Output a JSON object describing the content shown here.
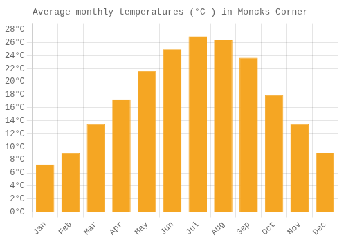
{
  "chart_data": {
    "type": "bar",
    "title": "Average monthly temperatures (°C ) in Moncks Corner",
    "categories": [
      "Jan",
      "Feb",
      "Mar",
      "Apr",
      "May",
      "Jun",
      "Jul",
      "Aug",
      "Sep",
      "Oct",
      "Nov",
      "Dec"
    ],
    "values": [
      7.3,
      9.0,
      13.5,
      17.3,
      21.7,
      25.0,
      27.0,
      26.4,
      23.7,
      18.0,
      13.5,
      9.1
    ],
    "color": "#F5A623",
    "ylim": [
      0,
      29
    ],
    "yticks": [
      {
        "value": 0,
        "label": "0°C"
      },
      {
        "value": 2,
        "label": "2°C"
      },
      {
        "value": 4,
        "label": "4°C"
      },
      {
        "value": 6,
        "label": "6°C"
      },
      {
        "value": 8,
        "label": "8°C"
      },
      {
        "value": 10,
        "label": "10°C"
      },
      {
        "value": 12,
        "label": "12°C"
      },
      {
        "value": 14,
        "label": "14°C"
      },
      {
        "value": 16,
        "label": "16°C"
      },
      {
        "value": 18,
        "label": "18°C"
      },
      {
        "value": 20,
        "label": "20°C"
      },
      {
        "value": 22,
        "label": "22°C"
      },
      {
        "value": 24,
        "label": "24°C"
      },
      {
        "value": 26,
        "label": "26°C"
      },
      {
        "value": 28,
        "label": "28°C"
      }
    ],
    "grid": true
  }
}
